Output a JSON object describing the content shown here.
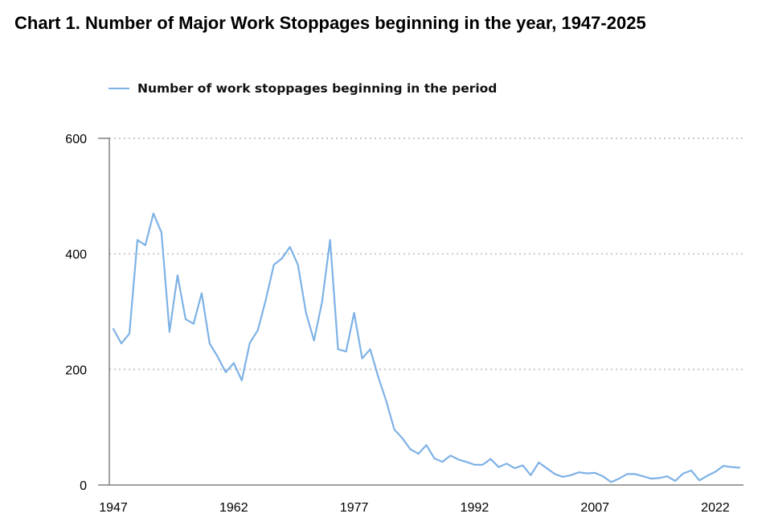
{
  "colors": {
    "series": "#7EB2E6",
    "grid": "#C8C8C8",
    "axis": "#808080"
  },
  "chart_data": {
    "type": "line",
    "title": "Chart 1. Number of Major Work Stoppages beginning in the year, 1947-2025",
    "xlabel": "",
    "ylabel": "",
    "xlim": [
      1947,
      2025
    ],
    "ylim": [
      0,
      600
    ],
    "yticks": [
      0,
      200,
      400,
      600
    ],
    "ytick_labels": [
      "0",
      "200",
      "400",
      "600"
    ],
    "xticks": [
      1947,
      1962,
      1977,
      1992,
      2007,
      2022
    ],
    "xtick_labels": [
      "1947",
      "1962",
      "1977",
      "1992",
      "2007",
      "2022"
    ],
    "grid": "horizontal-dotted",
    "legend_position": "top-left",
    "series": [
      {
        "name": "Number of work stoppages beginning in the period",
        "x": [
          1947,
          1948,
          1949,
          1950,
          1951,
          1952,
          1953,
          1954,
          1955,
          1956,
          1957,
          1958,
          1959,
          1960,
          1961,
          1962,
          1963,
          1964,
          1965,
          1966,
          1967,
          1968,
          1969,
          1970,
          1971,
          1972,
          1973,
          1974,
          1975,
          1976,
          1977,
          1978,
          1979,
          1980,
          1981,
          1982,
          1983,
          1984,
          1985,
          1986,
          1987,
          1988,
          1989,
          1990,
          1991,
          1992,
          1993,
          1994,
          1995,
          1996,
          1997,
          1998,
          1999,
          2000,
          2001,
          2002,
          2003,
          2004,
          2005,
          2006,
          2007,
          2008,
          2009,
          2010,
          2011,
          2012,
          2013,
          2014,
          2015,
          2016,
          2017,
          2018,
          2019,
          2020,
          2021,
          2022,
          2023,
          2024,
          2025
        ],
        "values": [
          270,
          245,
          262,
          424,
          415,
          470,
          437,
          265,
          363,
          287,
          279,
          332,
          245,
          222,
          195,
          211,
          181,
          246,
          268,
          321,
          381,
          392,
          412,
          381,
          298,
          250,
          317,
          424,
          235,
          231,
          298,
          219,
          235,
          187,
          145,
          96,
          81,
          62,
          54,
          69,
          46,
          40,
          51,
          44,
          40,
          35,
          35,
          45,
          31,
          37,
          29,
          34,
          17,
          39,
          29,
          19,
          14,
          17,
          22,
          20,
          21,
          15,
          5,
          11,
          19,
          19,
          15,
          11,
          12,
          15,
          7,
          20,
          25,
          8,
          16,
          23,
          33,
          31,
          30
        ]
      }
    ]
  }
}
